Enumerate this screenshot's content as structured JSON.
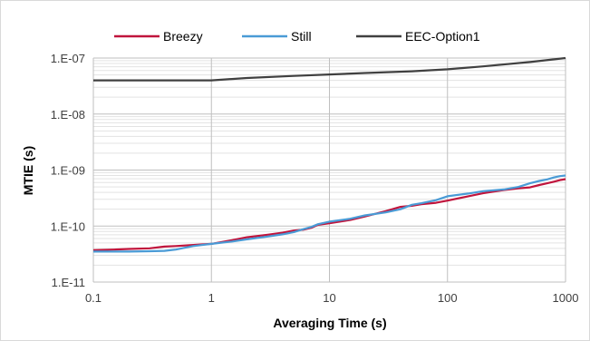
{
  "chart_data": {
    "type": "line",
    "title": "",
    "xlabel": "Averaging Time (s)",
    "ylabel": "MTIE (s)",
    "xscale": "log",
    "yscale": "log",
    "xlim": [
      0.1,
      1000
    ],
    "ylim": [
      1e-11,
      1e-07
    ],
    "x_tick_labels": [
      "0.1",
      "1",
      "10",
      "100",
      "1000"
    ],
    "y_tick_labels": [
      "1.E-11",
      "1.E-10",
      "1.E-09",
      "1.E-08",
      "1.E-07"
    ],
    "grid": "major and minor",
    "legend_position": "top",
    "series": [
      {
        "name": "Breezy",
        "color": "#c0143c",
        "points": [
          [
            0.1,
            3.7e-11
          ],
          [
            0.15,
            3.8e-11
          ],
          [
            0.2,
            3.9e-11
          ],
          [
            0.3,
            4e-11
          ],
          [
            0.4,
            4.3e-11
          ],
          [
            0.5,
            4.4e-11
          ],
          [
            0.7,
            4.6e-11
          ],
          [
            1,
            4.8e-11
          ],
          [
            1.5,
            5.6e-11
          ],
          [
            2,
            6.3e-11
          ],
          [
            3,
            7e-11
          ],
          [
            4,
            7.6e-11
          ],
          [
            5,
            8.3e-11
          ],
          [
            6,
            8.6e-11
          ],
          [
            7,
            9.3e-11
          ],
          [
            8,
            1.05e-10
          ],
          [
            10,
            1.12e-10
          ],
          [
            15,
            1.28e-10
          ],
          [
            20,
            1.48e-10
          ],
          [
            30,
            1.85e-10
          ],
          [
            40,
            2.2e-10
          ],
          [
            50,
            2.3e-10
          ],
          [
            60,
            2.45e-10
          ],
          [
            80,
            2.6e-10
          ],
          [
            100,
            2.85e-10
          ],
          [
            150,
            3.4e-10
          ],
          [
            200,
            3.85e-10
          ],
          [
            300,
            4.4e-10
          ],
          [
            400,
            4.7e-10
          ],
          [
            500,
            4.9e-10
          ],
          [
            600,
            5.4e-10
          ],
          [
            700,
            5.8e-10
          ],
          [
            800,
            6.2e-10
          ],
          [
            900,
            6.6e-10
          ],
          [
            1000,
            6.9e-10
          ]
        ]
      },
      {
        "name": "Still",
        "color": "#4a9bd6",
        "points": [
          [
            0.1,
            3.5e-11
          ],
          [
            0.2,
            3.5e-11
          ],
          [
            0.3,
            3.55e-11
          ],
          [
            0.4,
            3.6e-11
          ],
          [
            0.5,
            3.8e-11
          ],
          [
            0.7,
            4.4e-11
          ],
          [
            1,
            4.8e-11
          ],
          [
            1.5,
            5.3e-11
          ],
          [
            2,
            5.8e-11
          ],
          [
            3,
            6.5e-11
          ],
          [
            4,
            7.1e-11
          ],
          [
            5,
            7.8e-11
          ],
          [
            6,
            8.8e-11
          ],
          [
            7,
            9.6e-11
          ],
          [
            8,
            1.08e-10
          ],
          [
            10,
            1.2e-10
          ],
          [
            15,
            1.35e-10
          ],
          [
            20,
            1.55e-10
          ],
          [
            30,
            1.75e-10
          ],
          [
            40,
            2e-10
          ],
          [
            50,
            2.4e-10
          ],
          [
            60,
            2.55e-10
          ],
          [
            80,
            2.9e-10
          ],
          [
            100,
            3.4e-10
          ],
          [
            150,
            3.8e-10
          ],
          [
            200,
            4.2e-10
          ],
          [
            300,
            4.5e-10
          ],
          [
            400,
            5e-10
          ],
          [
            500,
            5.8e-10
          ],
          [
            600,
            6.4e-10
          ],
          [
            700,
            6.8e-10
          ],
          [
            800,
            7.4e-10
          ],
          [
            900,
            7.8e-10
          ],
          [
            1000,
            8e-10
          ]
        ]
      },
      {
        "name": "EEC-Option1",
        "color": "#404040",
        "points": [
          [
            0.1,
            4e-08
          ],
          [
            0.5,
            4e-08
          ],
          [
            1,
            4e-08
          ],
          [
            2,
            4.4e-08
          ],
          [
            5,
            4.8e-08
          ],
          [
            10,
            5.1e-08
          ],
          [
            20,
            5.4e-08
          ],
          [
            50,
            5.8e-08
          ],
          [
            100,
            6.3e-08
          ],
          [
            200,
            7.1e-08
          ],
          [
            500,
            8.5e-08
          ],
          [
            1000,
            1e-07
          ]
        ]
      }
    ]
  }
}
